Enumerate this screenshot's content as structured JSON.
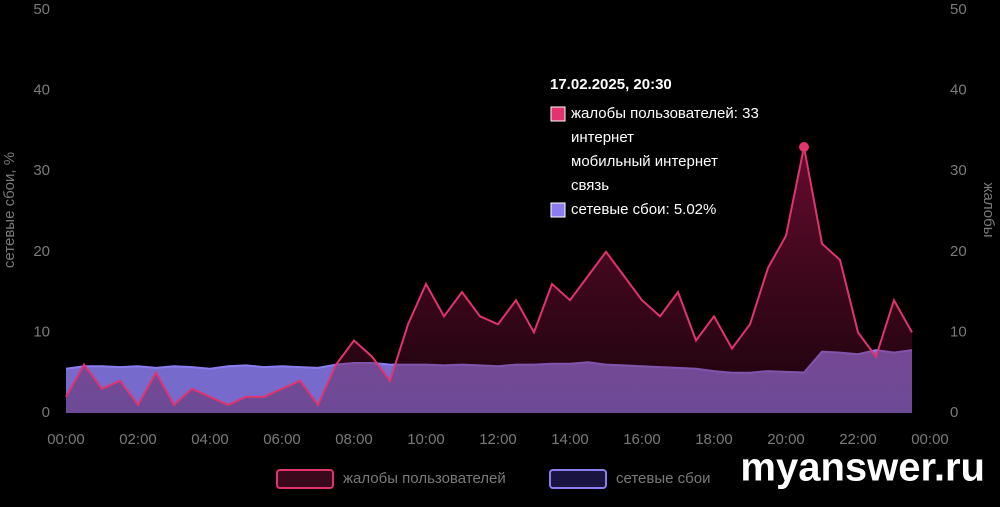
{
  "chart_data": {
    "type": "area",
    "y_label": "сетевые сбои, %",
    "y2_label": "жалобы",
    "xlim": [
      0,
      24
    ],
    "xticks": [
      {
        "value": 0,
        "label": "00:00"
      },
      {
        "value": 2,
        "label": "02:00"
      },
      {
        "value": 4,
        "label": "04:00"
      },
      {
        "value": 6,
        "label": "06:00"
      },
      {
        "value": 8,
        "label": "08:00"
      },
      {
        "value": 10,
        "label": "10:00"
      },
      {
        "value": 12,
        "label": "12:00"
      },
      {
        "value": 14,
        "label": "14:00"
      },
      {
        "value": 16,
        "label": "16:00"
      },
      {
        "value": 18,
        "label": "18:00"
      },
      {
        "value": 20,
        "label": "20:00"
      },
      {
        "value": 22,
        "label": "22:00"
      },
      {
        "value": 24,
        "label": "00:00"
      }
    ],
    "ylim": [
      0,
      50
    ],
    "yticks": [
      0,
      10,
      20,
      30,
      40,
      50
    ],
    "y2lim": [
      0,
      50
    ],
    "y2ticks": [
      0,
      10,
      20,
      30,
      40,
      50
    ],
    "x": [
      0,
      0.5,
      1,
      1.5,
      2,
      2.5,
      3,
      3.5,
      4,
      4.5,
      5,
      5.5,
      6,
      6.5,
      7,
      7.5,
      8,
      8.5,
      9,
      9.5,
      10,
      10.5,
      11,
      11.5,
      12,
      12.5,
      13,
      13.5,
      14,
      14.5,
      15,
      15.5,
      16,
      16.5,
      17,
      17.5,
      18,
      18.5,
      19,
      19.5,
      20,
      20.5,
      21,
      21.5,
      22,
      22.5,
      23,
      23.5
    ],
    "series": [
      {
        "name": "жалобы пользователей",
        "color": "#e0336f",
        "axis": "y2",
        "values": [
          2,
          6,
          3,
          4,
          1,
          5,
          1,
          3,
          2,
          1,
          2,
          2,
          3,
          4,
          1,
          6,
          9,
          7,
          4,
          11,
          16,
          12,
          15,
          12,
          11,
          14,
          10,
          16,
          14,
          17,
          20,
          17,
          14,
          12,
          15,
          9,
          12,
          8,
          11,
          18,
          22,
          33,
          21,
          19,
          10,
          7,
          14,
          10
        ]
      },
      {
        "name": "сетевые сбои",
        "color": "#8b7cf0",
        "values": [
          5.5,
          5.8,
          5.8,
          5.7,
          5.8,
          5.6,
          5.8,
          5.7,
          5.5,
          5.8,
          5.9,
          5.7,
          5.8,
          5.7,
          5.6,
          6,
          6.2,
          6.2,
          6,
          6,
          6,
          5.9,
          6,
          5.9,
          5.8,
          6,
          6,
          6.1,
          6.1,
          6.3,
          6,
          5.9,
          5.8,
          5.7,
          5.6,
          5.5,
          5.2,
          5,
          5,
          5.2,
          5.1,
          5.02,
          7.6,
          7.5,
          7.3,
          7.8,
          7.5,
          7.8
        ]
      }
    ],
    "tooltip": {
      "title": "17.02.2025, 20:30",
      "lines": [
        "интернет",
        "мобильный интернет",
        "связь"
      ],
      "network_label": "5.02%"
    },
    "watermark": "myanswer.ru"
  }
}
